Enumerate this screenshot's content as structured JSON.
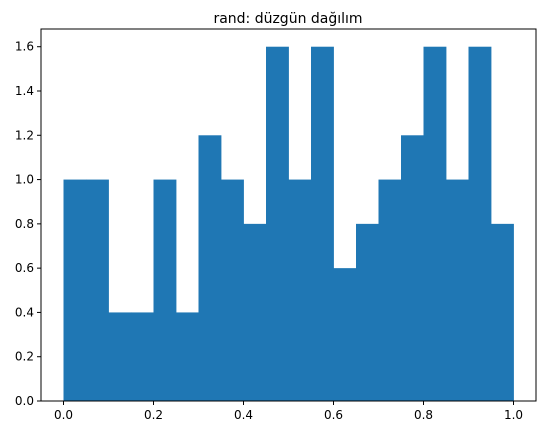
{
  "chart_data": {
    "type": "bar",
    "title": "rand: düzgün dağılım",
    "xlabel": "",
    "ylabel": "",
    "xlim": [
      -0.05,
      1.05
    ],
    "ylim": [
      0,
      1.68
    ],
    "bin_edges": [
      0.0,
      0.05,
      0.1,
      0.15,
      0.2,
      0.25,
      0.3,
      0.35,
      0.4,
      0.45,
      0.5,
      0.55,
      0.6,
      0.65,
      0.7,
      0.75,
      0.8,
      0.85,
      0.9,
      0.95,
      1.0
    ],
    "values": [
      1.0,
      1.0,
      0.4,
      0.4,
      1.0,
      0.4,
      1.2,
      1.0,
      0.8,
      1.6,
      1.0,
      1.6,
      0.6,
      0.8,
      1.0,
      1.2,
      1.6,
      1.0,
      1.6,
      0.8
    ],
    "x_ticks": [
      0.0,
      0.2,
      0.4,
      0.6,
      0.8,
      1.0
    ],
    "x_tick_labels": [
      "0.0",
      "0.2",
      "0.4",
      "0.6",
      "0.8",
      "1.0"
    ],
    "y_ticks": [
      0.0,
      0.2,
      0.4,
      0.6,
      0.8,
      1.0,
      1.2,
      1.4,
      1.6
    ],
    "y_tick_labels": [
      "0.0",
      "0.2",
      "0.4",
      "0.6",
      "0.8",
      "1.0",
      "1.2",
      "1.4",
      "1.6"
    ],
    "bar_color": "#1f77b4",
    "grid": false
  }
}
